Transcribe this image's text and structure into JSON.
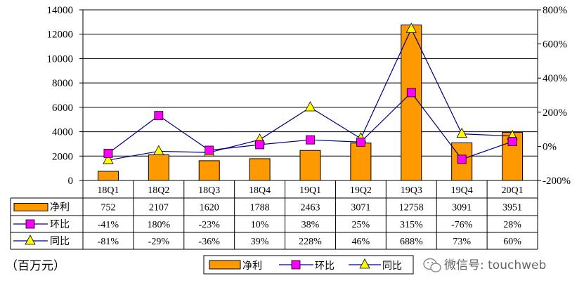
{
  "chart_data": {
    "type": "bar",
    "title": "",
    "unit_label": "（百万元）",
    "categories": [
      "18Q1",
      "18Q2",
      "18Q3",
      "18Q4",
      "19Q1",
      "19Q2",
      "19Q3",
      "19Q4",
      "20Q1"
    ],
    "series": [
      {
        "name": "净利",
        "type": "bar",
        "axis": "left",
        "color": "#FF9900",
        "values": [
          752,
          2107,
          1620,
          1788,
          2463,
          3071,
          12758,
          3091,
          3951
        ]
      },
      {
        "name": "环比",
        "type": "line",
        "axis": "right",
        "color": "#FF00FF",
        "marker": "square",
        "values": [
          -41,
          180,
          -23,
          10,
          38,
          25,
          315,
          -76,
          28
        ]
      },
      {
        "name": "同比",
        "type": "line",
        "axis": "right",
        "color": "#FFFF00",
        "marker": "triangle",
        "values": [
          -81,
          -29,
          -36,
          39,
          228,
          46,
          688,
          73,
          60
        ]
      }
    ],
    "table_rows": [
      {
        "label": "净利",
        "cells": [
          "752",
          "2107",
          "1620",
          "1788",
          "2463",
          "3071",
          "12758",
          "3091",
          "3951"
        ]
      },
      {
        "label": "环比",
        "cells": [
          "-41%",
          "180%",
          "-23%",
          "10%",
          "38%",
          "25%",
          "315%",
          "-76%",
          "28%"
        ]
      },
      {
        "label": "同比",
        "cells": [
          "-81%",
          "-29%",
          "-36%",
          "39%",
          "228%",
          "46%",
          "688%",
          "73%",
          "60%"
        ]
      }
    ],
    "y_left": {
      "min": 0,
      "max": 14000,
      "step": 2000,
      "ticks": [
        "0",
        "2000",
        "4000",
        "6000",
        "8000",
        "10000",
        "12000",
        "14000"
      ]
    },
    "y_right": {
      "min": -200,
      "max": 800,
      "step": 200,
      "ticks": [
        "-200%",
        "0%",
        "200%",
        "400%",
        "600%",
        "800%"
      ]
    },
    "legend": {
      "position": "bottom",
      "items": [
        "净利",
        "环比",
        "同比"
      ]
    },
    "line_color": "#00007F",
    "watermark": "微信号: touchweb"
  }
}
